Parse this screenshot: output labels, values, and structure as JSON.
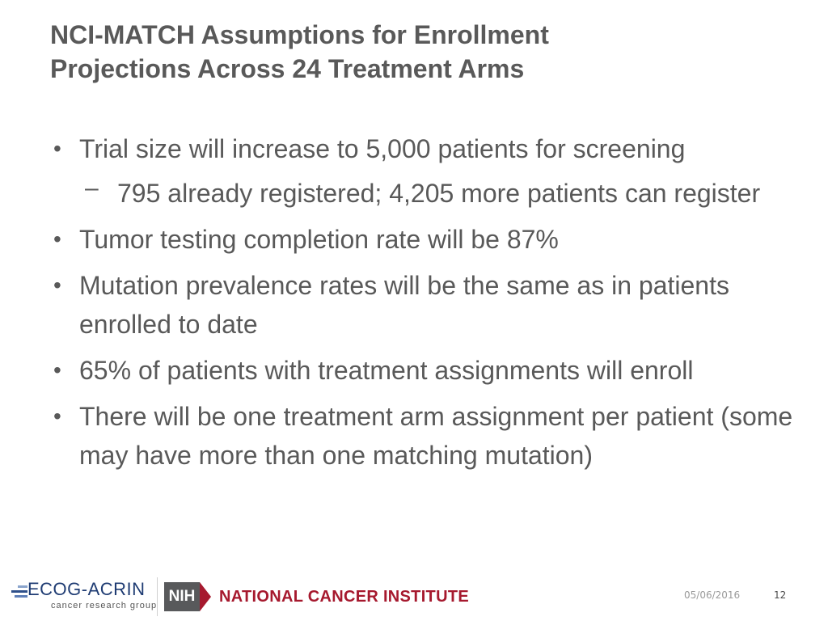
{
  "slide": {
    "title_line1": "NCI-MATCH Assumptions for Enrollment",
    "title_line2": "Projections Across 24 Treatment Arms",
    "bullets": [
      {
        "marker": "•",
        "text": "Trial size will increase to 5,000 patients for screening"
      },
      {
        "marker": "–",
        "text": "795 already registered; 4,205 more patients can register"
      },
      {
        "marker": "•",
        "text": "Tumor testing completion rate will be 87%"
      },
      {
        "marker": "•",
        "text": "Mutation prevalence rates will be the same as in patients enrolled to date"
      },
      {
        "marker": "•",
        "text": "65% of patients with treatment assignments will enroll"
      },
      {
        "marker": "•",
        "text": "There will be one treatment arm assignment per patient (some may have more than one matching mutation)"
      }
    ]
  },
  "footer": {
    "ecog_logo_name": "ECOG-ACRIN",
    "ecog_logo_subtitle": "cancer research group",
    "nih_logo_text": "NIH",
    "nci_text": "NATIONAL CANCER INSTITUTE",
    "date": "05/06/2016",
    "page_number": "12",
    "colors": {
      "ecog_blue": "#1f3c73",
      "nih_gray": "#58595b",
      "nci_red": "#a6192e"
    }
  }
}
